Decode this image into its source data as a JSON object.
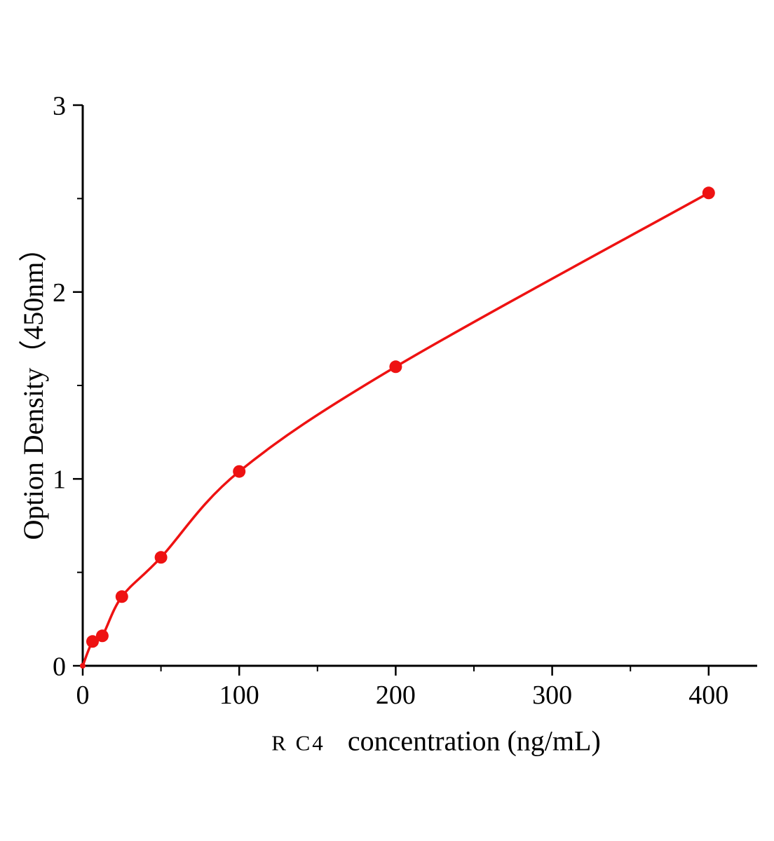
{
  "chart_data": {
    "type": "scatter",
    "title": "",
    "xlabel_prefix": "R C4",
    "xlabel": "concentration (ng/mL)",
    "ylabel": "Option Density（450nm）",
    "x": [
      0,
      6.25,
      12.5,
      25,
      50,
      100,
      200,
      400
    ],
    "y": [
      0,
      0.13,
      0.16,
      0.37,
      0.58,
      1.04,
      1.6,
      2.53
    ],
    "xlim": [
      0,
      431
    ],
    "ylim": [
      0,
      3
    ],
    "x_ticks": [
      0,
      100,
      200,
      300,
      400
    ],
    "y_ticks": [
      0,
      1,
      2,
      3
    ],
    "x_minor_ticks": [
      50,
      150,
      250,
      350
    ],
    "y_minor_ticks": [
      0.5,
      1.5,
      2.5
    ],
    "grid": "off",
    "legend": "none",
    "curve_color": "#ee1212",
    "marker_color": "#ee1212",
    "axis_color": "#000000",
    "marker_size": 9,
    "origin_marker_size": 4
  }
}
